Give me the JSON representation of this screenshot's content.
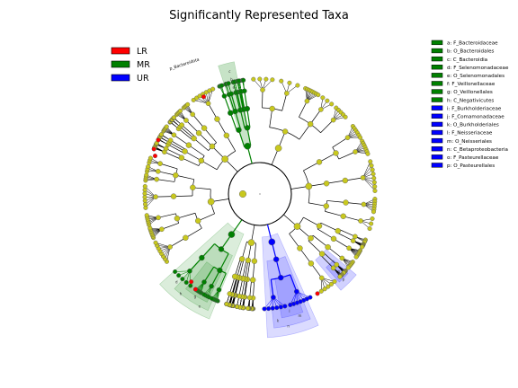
{
  "title": "Significantly Represented Taxa",
  "legend": [
    {
      "label": "LR",
      "color": "#ff0000"
    },
    {
      "label": "MR",
      "color": "#008000"
    },
    {
      "label": "UR",
      "color": "#0000ff"
    }
  ],
  "clade_key": [
    {
      "text": "a: F_Bacteroidaceae",
      "group": "MR"
    },
    {
      "text": "b: O_Bacteroidales",
      "group": "MR"
    },
    {
      "text": "c: C_Bacteroidia",
      "group": "MR"
    },
    {
      "text": "d: F_Selenomonadaceae",
      "group": "MR"
    },
    {
      "text": "e: O_Selenomonadales",
      "group": "MR"
    },
    {
      "text": "f: F_Veillonellaceae",
      "group": "MR"
    },
    {
      "text": "g: O_Veillonellales",
      "group": "MR"
    },
    {
      "text": "h: C_Negativicutes",
      "group": "MR"
    },
    {
      "text": "i: F_Burkholderiaceae",
      "group": "UR"
    },
    {
      "text": "j: F_Comamonadaceae",
      "group": "UR"
    },
    {
      "text": "k: O_Burkholderiales",
      "group": "UR"
    },
    {
      "text": "l: F_Neisseriaceae",
      "group": "UR"
    },
    {
      "text": "m: O_Neisseriales",
      "group": "UR"
    },
    {
      "text": "n: C_Betaproteobacteria",
      "group": "UR"
    },
    {
      "text": "o: F_Pasteurellaceae",
      "group": "UR"
    },
    {
      "text": "p: O_Pasteurellales",
      "group": "UR"
    }
  ],
  "phylum_label": "p_Bacteroidota",
  "colors": {
    "LR": "#ff0000",
    "MR": "#008000",
    "UR": "#0000ff",
    "node_default": "#c8c81e",
    "node_edge": "#555555",
    "mr_shade": "#008000",
    "ur_shade": "#0000ff"
  }
}
